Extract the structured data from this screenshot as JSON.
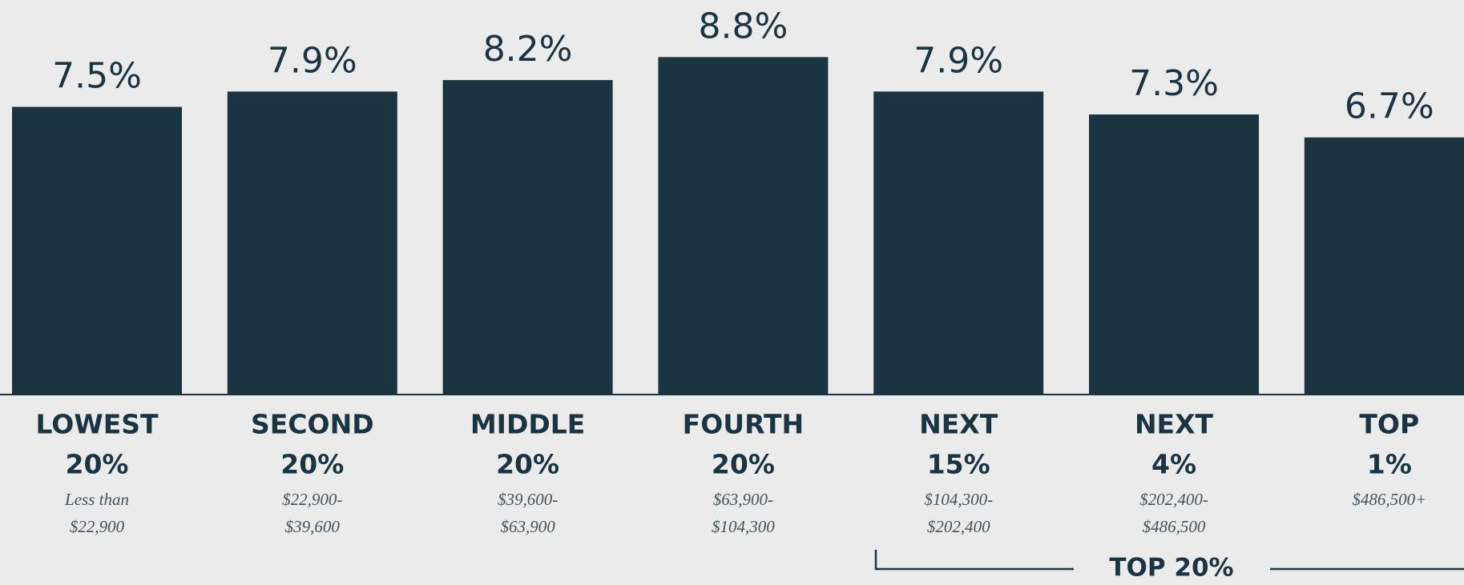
{
  "chart_data": {
    "type": "bar",
    "categories": [
      [
        "LOWEST",
        "20%"
      ],
      [
        "SECOND",
        "20%"
      ],
      [
        "MIDDLE",
        "20%"
      ],
      [
        "FOURTH",
        "20%"
      ],
      [
        "NEXT",
        "15%"
      ],
      [
        "NEXT",
        "4%"
      ],
      [
        "TOP",
        "1%"
      ]
    ],
    "income_ranges": [
      [
        "Less than",
        "$22,900"
      ],
      [
        "$22,900-",
        "$39,600"
      ],
      [
        "$39,600-",
        "$63,900"
      ],
      [
        "$63,900-",
        "$104,300"
      ],
      [
        "$104,300-",
        "$202,400"
      ],
      [
        "$202,400-",
        "$486,500"
      ],
      [
        "$486,500+"
      ]
    ],
    "values": [
      7.5,
      7.9,
      8.2,
      8.8,
      7.9,
      7.3,
      6.7
    ],
    "value_labels": [
      "7.5%",
      "7.9%",
      "8.2%",
      "8.8%",
      "7.9%",
      "7.3%",
      "6.7%"
    ],
    "color": "#1b3441",
    "annotations": [
      {
        "text": "TOP 20%"
      }
    ]
  }
}
